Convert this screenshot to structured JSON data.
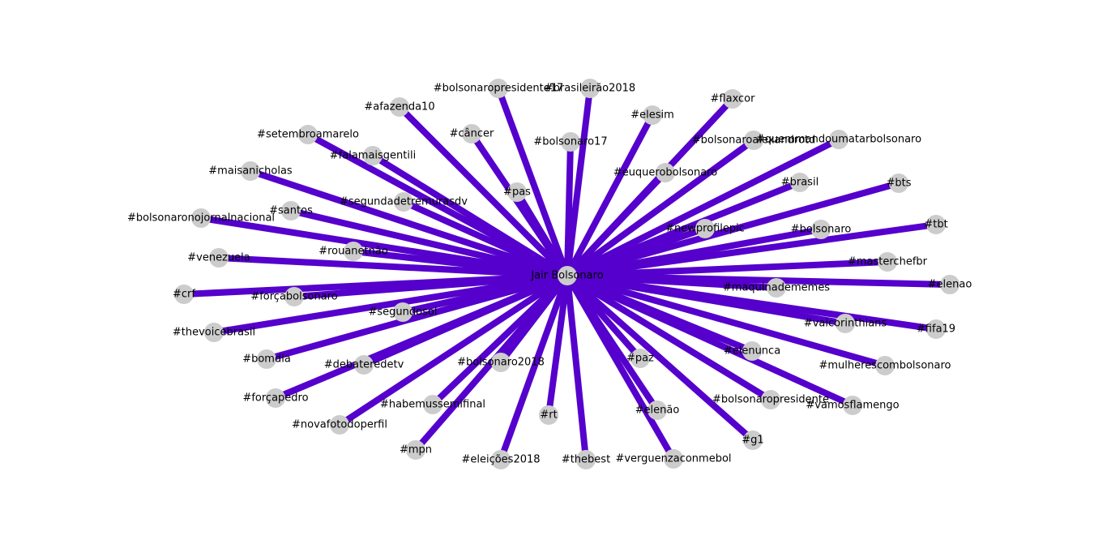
{
  "colors": {
    "edge": "#5500cc",
    "node": "#cccccc",
    "label": "#000000",
    "background": "#ffffff"
  },
  "graph": {
    "center": {
      "id": "center",
      "label": "Jair Bolsonaro"
    },
    "nodes": [
      {
        "id": "n01",
        "label": "#bolsonaropresidente17"
      },
      {
        "id": "n02",
        "label": "#brasileirão2018"
      },
      {
        "id": "n03",
        "label": "#afazenda10"
      },
      {
        "id": "n04",
        "label": "#flaxcor"
      },
      {
        "id": "n05",
        "label": "#elesim"
      },
      {
        "id": "n06",
        "label": "#câncer"
      },
      {
        "id": "n07",
        "label": "#bolsonaro17"
      },
      {
        "id": "n08",
        "label": "#setembroamarelo"
      },
      {
        "id": "n09",
        "label": "#bolsonaroalexandrotd"
      },
      {
        "id": "n10",
        "label": "#quemmandoumatarbolsonaro"
      },
      {
        "id": "n11",
        "label": "#falamaisgentili"
      },
      {
        "id": "n12",
        "label": "#maisanicholas"
      },
      {
        "id": "n13",
        "label": "#euquerobolsonaro"
      },
      {
        "id": "n14",
        "label": "#brasil"
      },
      {
        "id": "n15",
        "label": "#bts"
      },
      {
        "id": "n16",
        "label": "#pas"
      },
      {
        "id": "n17",
        "label": "#segundadetremurasdv"
      },
      {
        "id": "n18",
        "label": "#santos"
      },
      {
        "id": "n19",
        "label": "#bolsonaronojornalnacional"
      },
      {
        "id": "n20",
        "label": "#newprofilepic"
      },
      {
        "id": "n21",
        "label": "#bolsonaro"
      },
      {
        "id": "n22",
        "label": "#tbt"
      },
      {
        "id": "n23",
        "label": "#rouanetnão"
      },
      {
        "id": "n24",
        "label": "#venezuela"
      },
      {
        "id": "n25",
        "label": "#masterchefbr"
      },
      {
        "id": "n26",
        "label": "#crf"
      },
      {
        "id": "n27",
        "label": "#forçabolsonaro"
      },
      {
        "id": "n28",
        "label": "#elenao"
      },
      {
        "id": "n29",
        "label": "#maquinadememes"
      },
      {
        "id": "n30",
        "label": "#segundosol"
      },
      {
        "id": "n31",
        "label": "#thevoicebrasil"
      },
      {
        "id": "n32",
        "label": "#vaicorinthians"
      },
      {
        "id": "n33",
        "label": "#fifa19"
      },
      {
        "id": "n34",
        "label": "#bomdia"
      },
      {
        "id": "n35",
        "label": "#debateredetv"
      },
      {
        "id": "n36",
        "label": "#bolsonaro2018"
      },
      {
        "id": "n37",
        "label": "#paz"
      },
      {
        "id": "n38",
        "label": "#elenunca"
      },
      {
        "id": "n39",
        "label": "#mulherescombolsonaro"
      },
      {
        "id": "n40",
        "label": "#forçapedro"
      },
      {
        "id": "n41",
        "label": "#habemussemifinal"
      },
      {
        "id": "n42",
        "label": "#bolsonaropresidente"
      },
      {
        "id": "n43",
        "label": "#vamosflamengo"
      },
      {
        "id": "n44",
        "label": "#novafotodoperfil"
      },
      {
        "id": "n45",
        "label": "#rt"
      },
      {
        "id": "n46",
        "label": "#elenão"
      },
      {
        "id": "n47",
        "label": "#g1"
      },
      {
        "id": "n48",
        "label": "#mpn"
      },
      {
        "id": "n49",
        "label": "#eleições2018"
      },
      {
        "id": "n50",
        "label": "#thebest"
      },
      {
        "id": "n51",
        "label": "#verguenzaconmebol"
      }
    ]
  }
}
